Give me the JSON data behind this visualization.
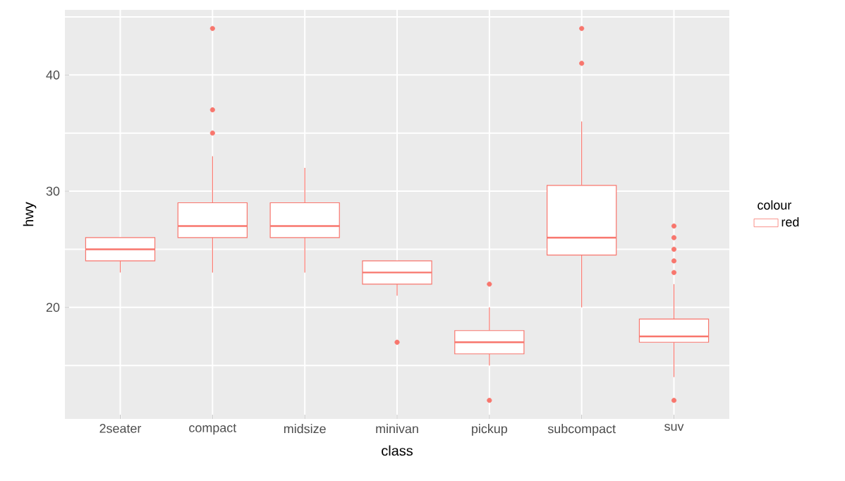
{
  "chart_data": {
    "type": "box",
    "xlabel": "class",
    "ylabel": "hwy",
    "legend_title": "colour",
    "categories": [
      "2seater",
      "compact",
      "midsize",
      "minivan",
      "pickup",
      "subcompact",
      "suv"
    ],
    "series": [
      {
        "name": "red",
        "color": "#f8766d",
        "boxes": [
          {
            "low": 23,
            "q1": 24,
            "median": 25,
            "q3": 26,
            "high": 26
          },
          {
            "low": 23,
            "q1": 26,
            "median": 27,
            "q3": 29,
            "high": 33,
            "outliers": [
              35,
              37,
              44
            ]
          },
          {
            "low": 23,
            "q1": 26,
            "median": 27,
            "q3": 29,
            "high": 32
          },
          {
            "low": 21,
            "q1": 22,
            "median": 23,
            "q3": 24,
            "high": 24,
            "outliers": [
              17
            ]
          },
          {
            "low": 15,
            "q1": 16,
            "median": 17,
            "q3": 18,
            "high": 20,
            "outliers": [
              12,
              22
            ]
          },
          {
            "low": 20,
            "q1": 24.5,
            "median": 26,
            "q3": 30.5,
            "high": 36,
            "outliers": [
              41,
              44
            ]
          },
          {
            "low": 14,
            "q1": 17,
            "median": 17.5,
            "q3": 19,
            "high": 22,
            "outliers": [
              12,
              23,
              24,
              25,
              26,
              27
            ]
          }
        ]
      }
    ],
    "ylim": [
      10.4,
      45.6
    ],
    "yticks": [
      {
        "value": 15,
        "label": null
      },
      20,
      {
        "value": 25,
        "label": null
      },
      30,
      {
        "value": 35,
        "label": null
      },
      40,
      {
        "value": 45,
        "label": null
      }
    ],
    "grid": true,
    "legend": "right"
  }
}
